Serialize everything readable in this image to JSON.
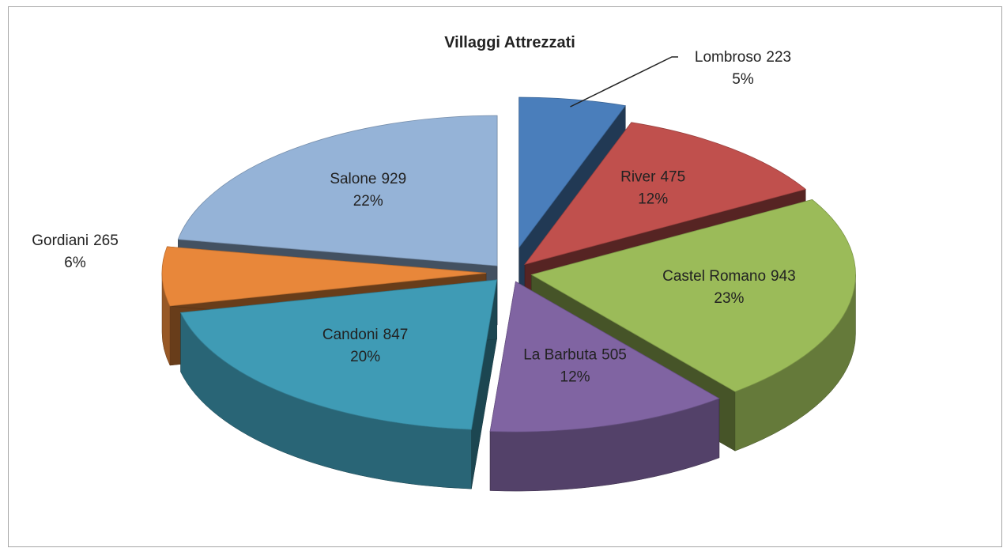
{
  "chart_data": {
    "type": "pie3d",
    "title": "Villaggi Attrezzati",
    "categories": [
      "Lombroso",
      "River",
      "Castel Romano",
      "La Barbuta",
      "Candoni",
      "Gordiani",
      "Salone"
    ],
    "values": [
      223,
      475,
      943,
      505,
      847,
      265,
      929
    ],
    "percent_labels": [
      "5%",
      "12%",
      "23%",
      "12%",
      "20%",
      "6%",
      "22%"
    ],
    "colors": [
      "#4a7ebb",
      "#c0504d",
      "#9bbb59",
      "#8064a2",
      "#3f9bb5",
      "#e8873a",
      "#95b3d7"
    ]
  }
}
